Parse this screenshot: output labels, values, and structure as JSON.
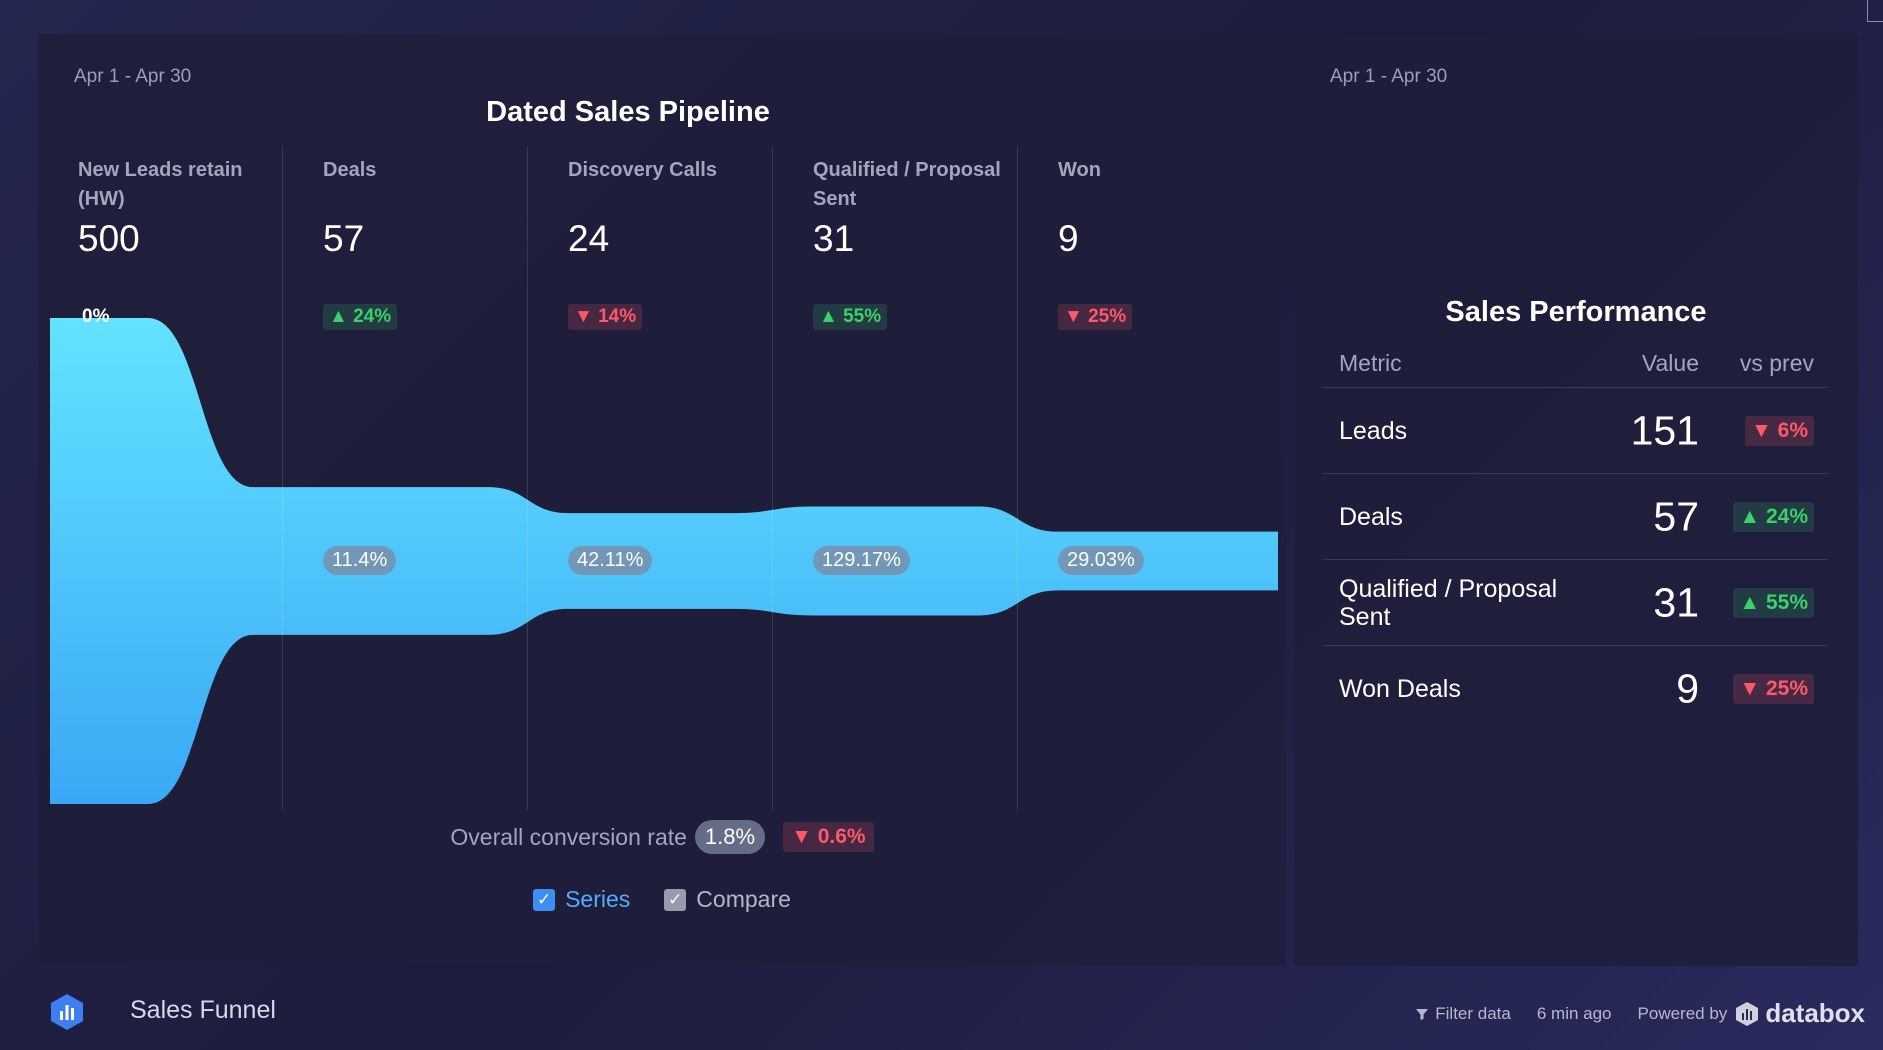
{
  "funnel_panel": {
    "date_range": "Apr 1 - Apr 30",
    "title": "Dated Sales Pipeline",
    "overall_label": "Overall conversion rate",
    "overall_rate": "1.8%",
    "overall_change": "▼ 0.6%",
    "legend": {
      "series": "Series",
      "compare": "Compare"
    }
  },
  "chart_data": {
    "type": "funnel",
    "title": "Dated Sales Pipeline",
    "stages": [
      {
        "label": "New Leads retain (HW)",
        "value": 500,
        "change": "0%",
        "direction": "neutral"
      },
      {
        "label": "Deals",
        "value": 57,
        "change": "▲ 24%",
        "direction": "up"
      },
      {
        "label": "Discovery Calls",
        "value": 24,
        "change": "▼ 14%",
        "direction": "down"
      },
      {
        "label": "Qualified / Proposal Sent",
        "value": 31,
        "change": "▲ 55%",
        "direction": "up"
      },
      {
        "label": "Won",
        "value": 9,
        "change": "▼ 25%",
        "direction": "down"
      }
    ],
    "conversion_rates": [
      "11.4%",
      "42.11%",
      "129.17%",
      "29.03%"
    ]
  },
  "performance_panel": {
    "date_range": "Apr 1 - Apr 30",
    "title": "Sales Performance",
    "headers": {
      "metric": "Metric",
      "value": "Value",
      "prev": "vs prev"
    },
    "rows": [
      {
        "metric": "Leads",
        "value": "151",
        "change": "▼ 6%",
        "direction": "down"
      },
      {
        "metric": "Deals",
        "value": "57",
        "change": "▲ 24%",
        "direction": "up"
      },
      {
        "metric": "Qualified / Proposal Sent",
        "value": "31",
        "change": "▲ 55%",
        "direction": "up"
      },
      {
        "metric": "Won Deals",
        "value": "9",
        "change": "▼ 25%",
        "direction": "down"
      }
    ]
  },
  "footer": {
    "title": "Sales Funnel",
    "filter": "Filter data",
    "updated": "6 min ago",
    "powered": "Powered by",
    "brand": "databox"
  },
  "colors": {
    "accent": "#4fc3f7",
    "up": "#3ad06a",
    "down": "#ff5868"
  }
}
